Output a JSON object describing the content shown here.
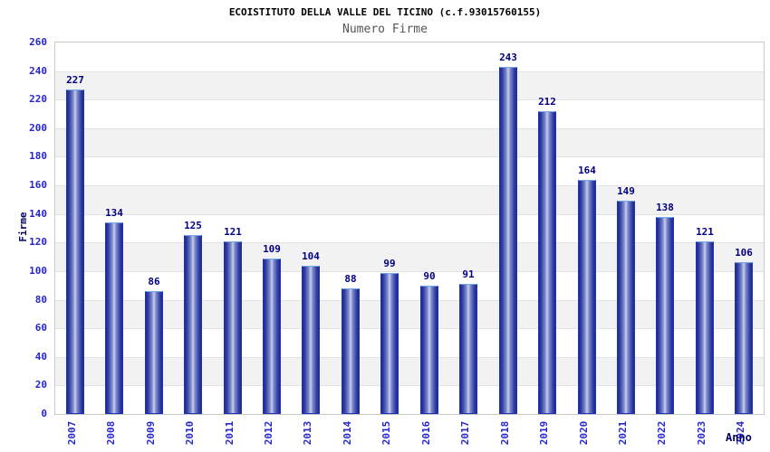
{
  "chart_data": {
    "type": "bar",
    "title": "ECOISTITUTO DELLA VALLE DEL TICINO (c.f.93015760155)",
    "subtitle": "Numero Firme",
    "xlabel": "Anno",
    "ylabel": "Firme",
    "categories": [
      "2007",
      "2008",
      "2009",
      "2010",
      "2011",
      "2012",
      "2013",
      "2014",
      "2015",
      "2016",
      "2017",
      "2018",
      "2019",
      "2020",
      "2021",
      "2022",
      "2023",
      "2024"
    ],
    "values": [
      227,
      134,
      86,
      125,
      121,
      109,
      104,
      88,
      99,
      90,
      91,
      243,
      212,
      164,
      149,
      138,
      121,
      106
    ],
    "ylim": [
      0,
      260
    ],
    "ytick_step": 20,
    "grid": "horizontal",
    "legend": "none",
    "colors": {
      "bar_dark": "#1f2a8c",
      "bar_mid": "#7e8bc9",
      "bar_light": "#c8cff1",
      "bar_border": "#2230c0",
      "bar_border_top": "#74a9e8",
      "value_label": "#000080",
      "tick_label": "#2626cc",
      "axis_title": "#000066",
      "title": "#000000",
      "subtitle": "#555555",
      "band_white": "#ffffff",
      "band_gray": "#f2f2f2",
      "gridline": "#e2e2e2",
      "plot_border": "#c9c9c9",
      "background": "#ffffff"
    }
  }
}
